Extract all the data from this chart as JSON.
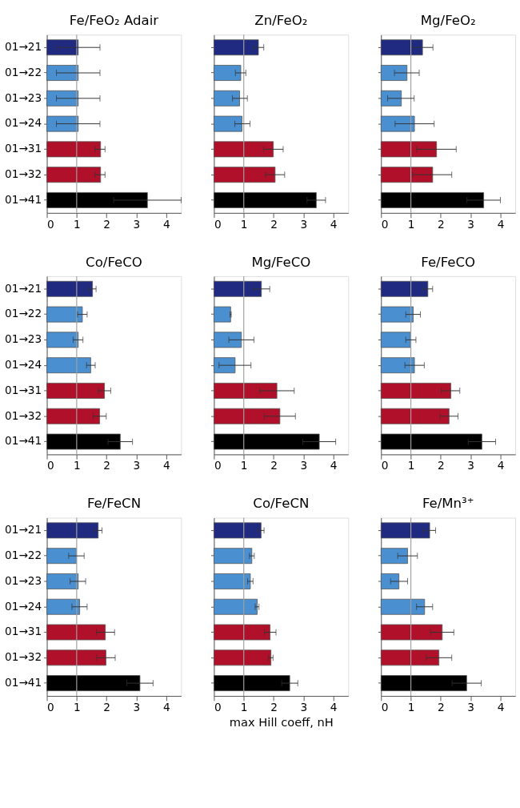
{
  "chart_data": [
    {
      "type": "bar",
      "orientation": "horizontal",
      "title": "Fe/FeO₂ Adair",
      "categories": [
        "01→21",
        "01→22",
        "01→23",
        "01→24",
        "01→31",
        "01→32",
        "01→41"
      ],
      "values": [
        1.05,
        1.05,
        1.05,
        1.05,
        1.8,
        1.8,
        3.37
      ],
      "colors": [
        "#1f2a80",
        "#4a8fd0",
        "#4a8fd0",
        "#4a8fd0",
        "#b0102a",
        "#b0102a",
        "#000000"
      ],
      "errors": [
        [
          0.32,
          1.78
        ],
        [
          0.32,
          1.78
        ],
        [
          0.32,
          1.78
        ],
        [
          0.32,
          1.78
        ],
        [
          1.61,
          1.95
        ],
        [
          1.61,
          1.95
        ],
        [
          2.24,
          4.5
        ]
      ],
      "xlim": [
        0,
        4.5
      ],
      "xticks": [
        0,
        1,
        2,
        3,
        4
      ],
      "ref_lines": [
        {
          "axis": "x",
          "value": 1,
          "color": "#a0a0a0"
        }
      ]
    },
    {
      "type": "bar",
      "orientation": "horizontal",
      "title": "Zn/FeO₂",
      "categories": [
        null,
        null,
        null,
        null,
        null,
        null,
        null
      ],
      "values": [
        1.49,
        0.9,
        0.86,
        0.94,
        1.99,
        2.05,
        3.43
      ],
      "colors": [
        "#1f2a80",
        "#4a8fd0",
        "#4a8fd0",
        "#4a8fd0",
        "#b0102a",
        "#b0102a",
        "#000000"
      ],
      "errors": [
        [
          1.32,
          1.67
        ],
        [
          0.72,
          1.07
        ],
        [
          0.62,
          1.12
        ],
        [
          0.7,
          1.21
        ],
        [
          1.67,
          2.32
        ],
        [
          1.73,
          2.37
        ],
        [
          3.12,
          3.74
        ]
      ],
      "xlim": [
        0,
        4.5
      ],
      "xticks": [
        0,
        1,
        2,
        3,
        4
      ],
      "ref_lines": [
        {
          "axis": "x",
          "value": 1,
          "color": "#a0a0a0"
        }
      ]
    },
    {
      "type": "bar",
      "orientation": "horizontal",
      "title": "Mg/FeO₂",
      "categories": [
        null,
        null,
        null,
        null,
        null,
        null,
        null
      ],
      "values": [
        1.39,
        0.87,
        0.68,
        1.12,
        1.86,
        1.73,
        3.44
      ],
      "colors": [
        "#1f2a80",
        "#4a8fd0",
        "#4a8fd0",
        "#4a8fd0",
        "#b0102a",
        "#b0102a",
        "#000000"
      ],
      "errors": [
        [
          1.05,
          1.74
        ],
        [
          0.45,
          1.28
        ],
        [
          0.22,
          1.11
        ],
        [
          0.47,
          1.78
        ],
        [
          1.19,
          2.52
        ],
        [
          1.06,
          2.37
        ],
        [
          2.88,
          4.0
        ]
      ],
      "xlim": [
        0,
        4.5
      ],
      "xticks": [
        0,
        1,
        2,
        3,
        4
      ],
      "ref_lines": [
        {
          "axis": "x",
          "value": 1,
          "color": "#a0a0a0"
        }
      ]
    },
    {
      "type": "bar",
      "orientation": "horizontal",
      "title": "Co/FeCO",
      "categories": [
        "01→21",
        "01→22",
        "01→23",
        "01→24",
        "01→31",
        "01→32",
        "01→41"
      ],
      "values": [
        1.53,
        1.19,
        1.05,
        1.47,
        1.93,
        1.77,
        2.46
      ],
      "colors": [
        "#1f2a80",
        "#4a8fd0",
        "#4a8fd0",
        "#4a8fd0",
        "#b0102a",
        "#b0102a",
        "#000000"
      ],
      "errors": [
        [
          1.4,
          1.65
        ],
        [
          1.03,
          1.35
        ],
        [
          0.88,
          1.21
        ],
        [
          1.33,
          1.62
        ],
        [
          1.73,
          2.14
        ],
        [
          1.55,
          1.99
        ],
        [
          2.05,
          2.87
        ]
      ],
      "xlim": [
        0,
        4.5
      ],
      "xticks": [
        0,
        1,
        2,
        3,
        4
      ],
      "ref_lines": [
        {
          "axis": "x",
          "value": 1,
          "color": "#a0a0a0"
        }
      ]
    },
    {
      "type": "bar",
      "orientation": "horizontal",
      "title": "Mg/FeCO",
      "categories": [
        null,
        null,
        null,
        null,
        null,
        null,
        null
      ],
      "values": [
        1.59,
        0.56,
        0.92,
        0.71,
        2.11,
        2.21,
        3.53
      ],
      "colors": [
        "#1f2a80",
        "#4a8fd0",
        "#4a8fd0",
        "#4a8fd0",
        "#b0102a",
        "#b0102a",
        "#000000"
      ],
      "errors": [
        [
          1.31,
          1.87
        ],
        [
          0.54,
          0.58
        ],
        [
          0.5,
          1.34
        ],
        [
          0.17,
          1.24
        ],
        [
          1.53,
          2.69
        ],
        [
          1.69,
          2.73
        ],
        [
          2.98,
          4.08
        ]
      ],
      "xlim": [
        0,
        4.5
      ],
      "xticks": [
        0,
        1,
        2,
        3,
        4
      ],
      "ref_lines": [
        {
          "axis": "x",
          "value": 1,
          "color": "#a0a0a0"
        }
      ]
    },
    {
      "type": "bar",
      "orientation": "horizontal",
      "title": "Fe/FeCO",
      "categories": [
        null,
        null,
        null,
        null,
        null,
        null,
        null
      ],
      "values": [
        1.57,
        1.08,
        0.99,
        1.12,
        2.34,
        2.28,
        3.38
      ],
      "colors": [
        "#1f2a80",
        "#4a8fd0",
        "#4a8fd0",
        "#4a8fd0",
        "#b0102a",
        "#b0102a",
        "#000000"
      ],
      "errors": [
        [
          1.39,
          1.73
        ],
        [
          0.83,
          1.32
        ],
        [
          0.83,
          1.17
        ],
        [
          0.8,
          1.45
        ],
        [
          2.02,
          2.64
        ],
        [
          1.98,
          2.58
        ],
        [
          2.92,
          3.84
        ]
      ],
      "xlim": [
        0,
        4.5
      ],
      "xticks": [
        0,
        1,
        2,
        3,
        4
      ],
      "ref_lines": [
        {
          "axis": "x",
          "value": 1,
          "color": "#a0a0a0"
        }
      ]
    },
    {
      "type": "bar",
      "orientation": "horizontal",
      "title": "Fe/FeCN",
      "categories": [
        "01→21",
        "01→22",
        "01→23",
        "01→24",
        "01→31",
        "01→32",
        "01→41"
      ],
      "values": [
        1.72,
        0.99,
        1.05,
        1.1,
        1.96,
        1.98,
        3.12
      ],
      "colors": [
        "#1f2a80",
        "#4a8fd0",
        "#4a8fd0",
        "#4a8fd0",
        "#b0102a",
        "#b0102a",
        "#000000"
      ],
      "errors": [
        [
          1.58,
          1.85
        ],
        [
          0.73,
          1.25
        ],
        [
          0.78,
          1.3
        ],
        [
          0.84,
          1.35
        ],
        [
          1.66,
          2.27
        ],
        [
          1.67,
          2.29
        ],
        [
          2.68,
          3.56
        ]
      ],
      "xlim": [
        0,
        4.5
      ],
      "xticks": [
        0,
        1,
        2,
        3,
        4
      ],
      "ref_lines": [
        {
          "axis": "x",
          "value": 1,
          "color": "#a0a0a0"
        }
      ]
    },
    {
      "type": "bar",
      "orientation": "horizontal",
      "title": "Co/FeCN",
      "xlabel": "max Hill coeff, nH",
      "categories": [
        null,
        null,
        null,
        null,
        null,
        null,
        null
      ],
      "values": [
        1.58,
        1.27,
        1.22,
        1.45,
        1.88,
        1.91,
        2.54
      ],
      "colors": [
        "#1f2a80",
        "#4a8fd0",
        "#4a8fd0",
        "#4a8fd0",
        "#b0102a",
        "#b0102a",
        "#000000"
      ],
      "errors": [
        [
          1.47,
          1.68
        ],
        [
          1.19,
          1.35
        ],
        [
          1.13,
          1.31
        ],
        [
          1.38,
          1.51
        ],
        [
          1.69,
          2.08
        ],
        [
          1.83,
          1.98
        ],
        [
          2.27,
          2.81
        ]
      ],
      "xlim": [
        0,
        4.5
      ],
      "xticks": [
        0,
        1,
        2,
        3,
        4
      ],
      "ref_lines": [
        {
          "axis": "x",
          "value": 1,
          "color": "#a0a0a0"
        }
      ]
    },
    {
      "type": "bar",
      "orientation": "horizontal",
      "title": "Fe/Mn³⁺",
      "categories": [
        null,
        null,
        null,
        null,
        null,
        null,
        null
      ],
      "values": [
        1.63,
        0.89,
        0.6,
        1.46,
        2.05,
        1.94,
        2.87
      ],
      "colors": [
        "#1f2a80",
        "#4a8fd0",
        "#4a8fd0",
        "#4a8fd0",
        "#b0102a",
        "#b0102a",
        "#000000"
      ],
      "errors": [
        [
          1.43,
          1.83
        ],
        [
          0.56,
          1.22
        ],
        [
          0.32,
          0.89
        ],
        [
          1.19,
          1.73
        ],
        [
          1.66,
          2.44
        ],
        [
          1.52,
          2.37
        ],
        [
          2.38,
          3.36
        ]
      ],
      "xlim": [
        0,
        4.5
      ],
      "xticks": [
        0,
        1,
        2,
        3,
        4
      ],
      "ref_lines": [
        {
          "axis": "x",
          "value": 1,
          "color": "#a0a0a0"
        }
      ]
    }
  ]
}
